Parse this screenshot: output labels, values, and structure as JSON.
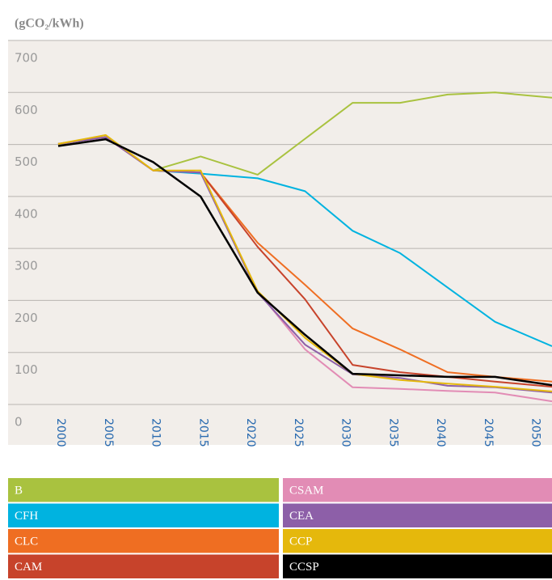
{
  "chart_data": {
    "type": "line",
    "title": "(gCO₂/kWh)",
    "x": [
      2000,
      2005,
      2010,
      2015,
      2021,
      2026,
      2031,
      2036,
      2041,
      2046,
      2052
    ],
    "xlim": [
      2000,
      2052
    ],
    "xticks": [
      2000,
      2005,
      2010,
      2015,
      2020,
      2025,
      2030,
      2035,
      2040,
      2045,
      2050
    ],
    "ylim": [
      0,
      700
    ],
    "yticks": [
      0,
      100,
      200,
      300,
      400,
      500,
      600,
      700
    ],
    "grid": true,
    "series": [
      {
        "name": "B",
        "color": "#a9c23f",
        "values": [
          500,
          518,
          450,
          477,
          442,
          511,
          580,
          580,
          596,
          600,
          590
        ]
      },
      {
        "name": "CFH",
        "color": "#00b3e0",
        "values": [
          501,
          514,
          450,
          444,
          435,
          410,
          334,
          291,
          225,
          159,
          112
        ]
      },
      {
        "name": "CLC",
        "color": "#ef6e22",
        "values": [
          501,
          514,
          450,
          446,
          311,
          230,
          146,
          106,
          62,
          53,
          44
        ]
      },
      {
        "name": "CAM",
        "color": "#c7432b",
        "values": [
          501,
          514,
          450,
          446,
          303,
          202,
          76,
          62,
          53,
          44,
          34
        ]
      },
      {
        "name": "CSAM",
        "color": "#e28cb5",
        "values": [
          501,
          514,
          450,
          446,
          218,
          106,
          33,
          30,
          26,
          23,
          6
        ]
      },
      {
        "name": "CEA",
        "color": "#8d5fa8",
        "values": [
          501,
          514,
          450,
          446,
          215,
          115,
          58,
          51,
          36,
          33,
          23
        ]
      },
      {
        "name": "CCP",
        "color": "#e5b80c",
        "values": [
          501,
          518,
          450,
          450,
          218,
          128,
          59,
          47,
          40,
          34,
          25
        ]
      },
      {
        "name": "CCSP",
        "color": "#000000",
        "values": [
          497,
          510,
          466,
          400,
          215,
          134,
          59,
          56,
          53,
          53,
          37
        ]
      }
    ]
  }
}
